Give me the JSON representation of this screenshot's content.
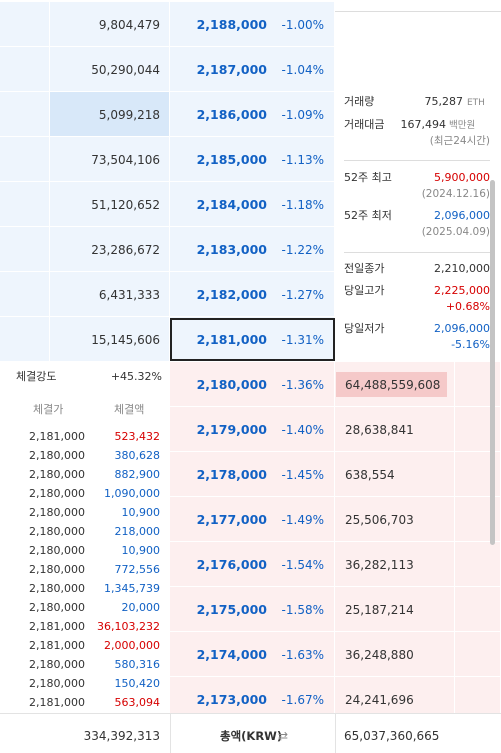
{
  "asks": [
    {
      "volume": "9,804,479",
      "price": "2,188,000",
      "change": "-1.00%"
    },
    {
      "volume": "50,290,044",
      "price": "2,187,000",
      "change": "-1.04%"
    },
    {
      "volume": "5,099,218",
      "price": "2,186,000",
      "change": "-1.09%"
    },
    {
      "volume": "73,504,106",
      "price": "2,185,000",
      "change": "-1.13%"
    },
    {
      "volume": "51,120,652",
      "price": "2,184,000",
      "change": "-1.18%"
    },
    {
      "volume": "23,286,672",
      "price": "2,183,000",
      "change": "-1.22%"
    },
    {
      "volume": "6,431,333",
      "price": "2,182,000",
      "change": "-1.27%"
    },
    {
      "volume": "15,145,606",
      "price": "2,181,000",
      "change": "-1.31%"
    }
  ],
  "bids": [
    {
      "price": "2,180,000",
      "change": "-1.36%",
      "volume": "64,488,559,608"
    },
    {
      "price": "2,179,000",
      "change": "-1.40%",
      "volume": "28,638,841"
    },
    {
      "price": "2,178,000",
      "change": "-1.45%",
      "volume": "638,554"
    },
    {
      "price": "2,177,000",
      "change": "-1.49%",
      "volume": "25,506,703"
    },
    {
      "price": "2,176,000",
      "change": "-1.54%",
      "volume": "36,282,113"
    },
    {
      "price": "2,175,000",
      "change": "-1.58%",
      "volume": "25,187,214"
    },
    {
      "price": "2,174,000",
      "change": "-1.63%",
      "volume": "36,248,880"
    },
    {
      "price": "2,173,000",
      "change": "-1.67%",
      "volume": "24,241,696"
    }
  ],
  "info": {
    "volume": {
      "label": "거래량",
      "value": "75,287",
      "unit": "ETH"
    },
    "amount": {
      "label": "거래대금",
      "value": "167,494",
      "unit": "백만원",
      "note": "(최근24시간)"
    },
    "high52": {
      "label": "52주 최고",
      "value": "5,900,000",
      "date": "(2024.12.16)"
    },
    "low52": {
      "label": "52주 최저",
      "value": "2,096,000",
      "date": "(2025.04.09)"
    },
    "prevClose": {
      "label": "전일종가",
      "value": "2,210,000"
    },
    "dayHigh": {
      "label": "당일고가",
      "value": "2,225,000",
      "change": "+0.68%"
    },
    "dayLow": {
      "label": "당일저가",
      "value": "2,096,000",
      "change": "-5.16%"
    }
  },
  "strength": {
    "label": "체결강도",
    "value": "+45.32%"
  },
  "trades": {
    "headers": [
      "체결가",
      "체결액"
    ],
    "rows": [
      {
        "price": "2,181,000",
        "amount": "523,432",
        "color": "#d60000"
      },
      {
        "price": "2,180,000",
        "amount": "380,628",
        "color": "#1261c4"
      },
      {
        "price": "2,180,000",
        "amount": "882,900",
        "color": "#1261c4"
      },
      {
        "price": "2,180,000",
        "amount": "1,090,000",
        "color": "#1261c4"
      },
      {
        "price": "2,180,000",
        "amount": "10,900",
        "color": "#1261c4"
      },
      {
        "price": "2,180,000",
        "amount": "218,000",
        "color": "#1261c4"
      },
      {
        "price": "2,180,000",
        "amount": "10,900",
        "color": "#1261c4"
      },
      {
        "price": "2,180,000",
        "amount": "772,556",
        "color": "#1261c4"
      },
      {
        "price": "2,180,000",
        "amount": "1,345,739",
        "color": "#1261c4"
      },
      {
        "price": "2,180,000",
        "amount": "20,000",
        "color": "#1261c4"
      },
      {
        "price": "2,181,000",
        "amount": "36,103,232",
        "color": "#d60000"
      },
      {
        "price": "2,181,000",
        "amount": "2,000,000",
        "color": "#d60000"
      },
      {
        "price": "2,180,000",
        "amount": "580,316",
        "color": "#1261c4"
      },
      {
        "price": "2,180,000",
        "amount": "150,420",
        "color": "#1261c4"
      },
      {
        "price": "2,181,000",
        "amount": "563,094",
        "color": "#d60000"
      }
    ]
  },
  "footer": {
    "askTotal": "334,392,313",
    "label": "총액(KRW)",
    "bidTotal": "65,037,360,665"
  }
}
